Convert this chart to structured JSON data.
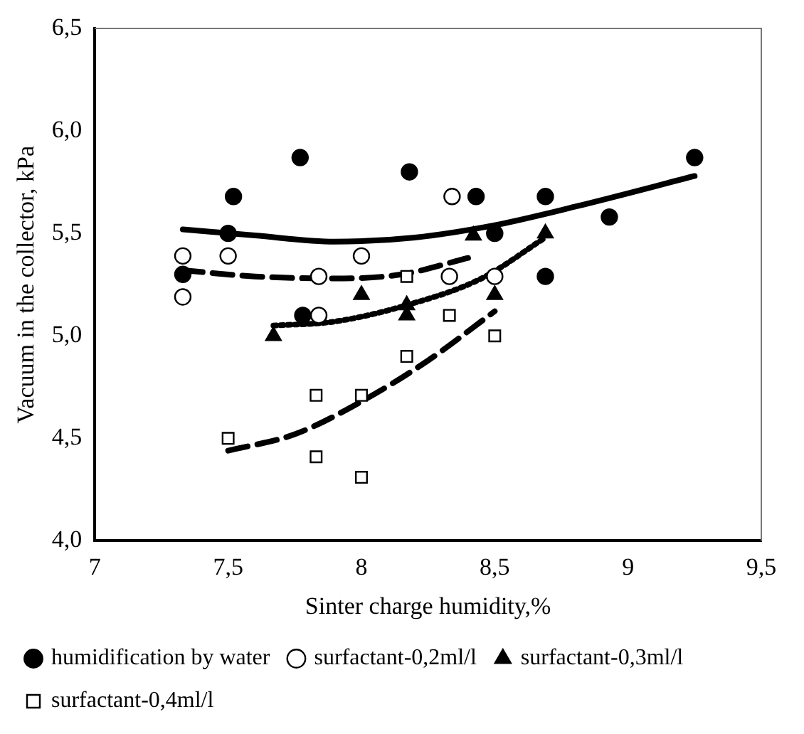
{
  "chart_data": {
    "type": "scatter",
    "xlabel": "Sinter charge humidity,%",
    "ylabel": "Vacuum in the collector, kPa",
    "xlim": [
      7,
      9.5
    ],
    "xticks": [
      7,
      {
        "value": 7.5,
        "label": "7,5"
      },
      8,
      {
        "value": 8.5,
        "label": "8,5"
      },
      9,
      {
        "value": 9.5,
        "label": "9,5"
      }
    ],
    "ylim": [
      4,
      6.5
    ],
    "yticks": [
      {
        "value": 4,
        "label": "4,0"
      },
      {
        "value": 4.5,
        "label": "4,5"
      },
      {
        "value": 5,
        "label": "5,0"
      },
      {
        "value": 5.5,
        "label": "5,5"
      },
      {
        "value": 6,
        "label": "6,0"
      },
      {
        "value": 6.5,
        "label": "6,5"
      }
    ],
    "grid": false,
    "legend": "bottom",
    "series": [
      {
        "name": "humidification by water",
        "color": "#000000",
        "marker": "circle",
        "x": [
          7.33,
          7.5,
          7.52,
          7.77,
          7.78,
          8.18,
          8.43,
          8.5,
          8.69,
          8.69,
          8.93,
          9.25
        ],
        "values": [
          5.3,
          5.5,
          5.68,
          5.87,
          5.1,
          5.8,
          5.68,
          5.5,
          5.68,
          5.29,
          5.58,
          5.87
        ]
      },
      {
        "name": "surfactant-0,2ml/l",
        "color": "#ffffff",
        "marker": "circle",
        "x": [
          7.33,
          7.33,
          7.5,
          7.84,
          7.84,
          8.0,
          8.34,
          8.33,
          8.5
        ],
        "values": [
          5.39,
          5.19,
          5.39,
          5.1,
          5.29,
          5.39,
          5.68,
          5.29,
          5.29
        ]
      },
      {
        "name": "surfactant-0,3ml/l",
        "color": "#000000",
        "marker": "triangle",
        "x": [
          7.67,
          8.0,
          8.17,
          8.17,
          8.42,
          8.5,
          8.69
        ],
        "values": [
          5.0,
          5.2,
          5.1,
          5.15,
          5.49,
          5.2,
          5.5
        ]
      },
      {
        "name": "surfactant-0,4ml/l",
        "color": "#ffffff",
        "marker": "square",
        "x": [
          7.5,
          7.83,
          7.83,
          8.0,
          8.0,
          8.17,
          8.17,
          8.33,
          8.5
        ],
        "values": [
          4.5,
          4.71,
          4.41,
          4.71,
          4.31,
          4.9,
          5.29,
          5.1,
          5.0
        ]
      },
      {
        "type": "line",
        "color": "#000000",
        "marker": "none",
        "line_style": "solid",
        "x": [
          7.33,
          7.6,
          7.9,
          8.2,
          8.5,
          8.8,
          9.25
        ],
        "values": [
          5.52,
          5.49,
          5.46,
          5.48,
          5.54,
          5.63,
          5.78
        ]
      },
      {
        "type": "line",
        "color": "#000000",
        "marker": "none",
        "line_style": "dashed",
        "x": [
          7.33,
          7.6,
          7.9,
          8.15,
          8.4
        ],
        "values": [
          5.32,
          5.29,
          5.28,
          5.3,
          5.38
        ]
      },
      {
        "type": "line",
        "color": "#000000",
        "marker": "none",
        "line_style": "dotted",
        "x": [
          7.67,
          7.9,
          8.17,
          8.45,
          8.69
        ],
        "values": [
          5.05,
          5.07,
          5.15,
          5.28,
          5.48
        ]
      },
      {
        "type": "line",
        "color": "#000000",
        "marker": "none",
        "line_style": "dashed",
        "x": [
          7.5,
          7.75,
          8.0,
          8.25,
          8.5
        ],
        "values": [
          4.44,
          4.52,
          4.68,
          4.88,
          5.12
        ]
      }
    ]
  }
}
